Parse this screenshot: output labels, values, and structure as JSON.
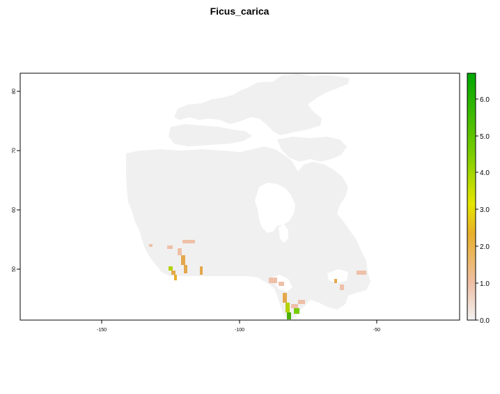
{
  "title": "Ficus_carica",
  "map": {
    "x_ticks": [
      "-150",
      "-100",
      "-50"
    ],
    "y_ticks": [
      "50",
      "60",
      "70",
      "80"
    ],
    "x_range": [
      -180,
      -20
    ],
    "y_range": [
      41,
      83
    ]
  },
  "legend": {
    "ticks": [
      "0.0",
      "1.0",
      "2.0",
      "3.0",
      "4.0",
      "5.0",
      "6.0"
    ],
    "range": [
      0,
      6.5
    ],
    "colors": [
      "#f2f2f2",
      "#eebfa5",
      "#e8b02a",
      "#e6e600",
      "#77cc00",
      "#00a600"
    ]
  },
  "colors": {
    "land": "#f0f0f0",
    "frame": "#000000",
    "low": "#eec0a8",
    "mid": "#e3a84c",
    "high": "#b4d200",
    "top": "#4cb000"
  }
}
